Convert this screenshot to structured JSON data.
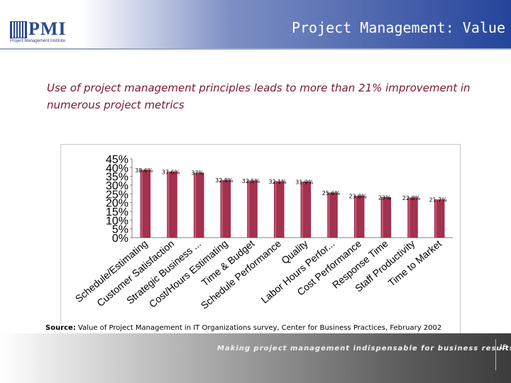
{
  "header": {
    "title": "Project Management: Value",
    "logo_text": "PMI",
    "logo_sub": "Project Management Institute"
  },
  "subtitle": "Use of project management principles leads to more than 21% improvement in numerous project metrics",
  "source": {
    "label": "Source:",
    "text": " Value of Project Management in IT Organizations survey, Center for Business Practices, February 2002"
  },
  "footer": {
    "tagline": "Making project management indispensable for business results.®",
    "page_number": "18"
  },
  "colors": {
    "bar": "#a4314d",
    "bar_light": "#c85a76",
    "accent": "#7a1830"
  },
  "chart_data": {
    "type": "bar",
    "title": "",
    "xlabel": "",
    "ylabel": "",
    "ylim": [
      0,
      45
    ],
    "yticks": [
      "0%",
      "5%",
      "10%",
      "15%",
      "20%",
      "25%",
      "30%",
      "35%",
      "40%",
      "45%"
    ],
    "categories": [
      "Schedule/Estimating",
      "Customer Satisfaction",
      "Strategic Business ...",
      "Cost/Hours Estimating",
      "Time & Budget",
      "Schedule Performance",
      "Quality",
      "Labor Hours Perfor...",
      "Cost Performance",
      "Response Time",
      "Staff Productivity",
      "Time to Market"
    ],
    "values": [
      38.6,
      37.6,
      37,
      32.8,
      32.5,
      32.1,
      31.9,
      25.6,
      23.8,
      23,
      22.8,
      21.7
    ],
    "data_labels": [
      "38.6%",
      "37.6%",
      "37%",
      "32.8%",
      "32.5%",
      "32.1%",
      "31.9%",
      "25.6%",
      "23.8%",
      "23%",
      "22.8%",
      "21.7%"
    ]
  }
}
